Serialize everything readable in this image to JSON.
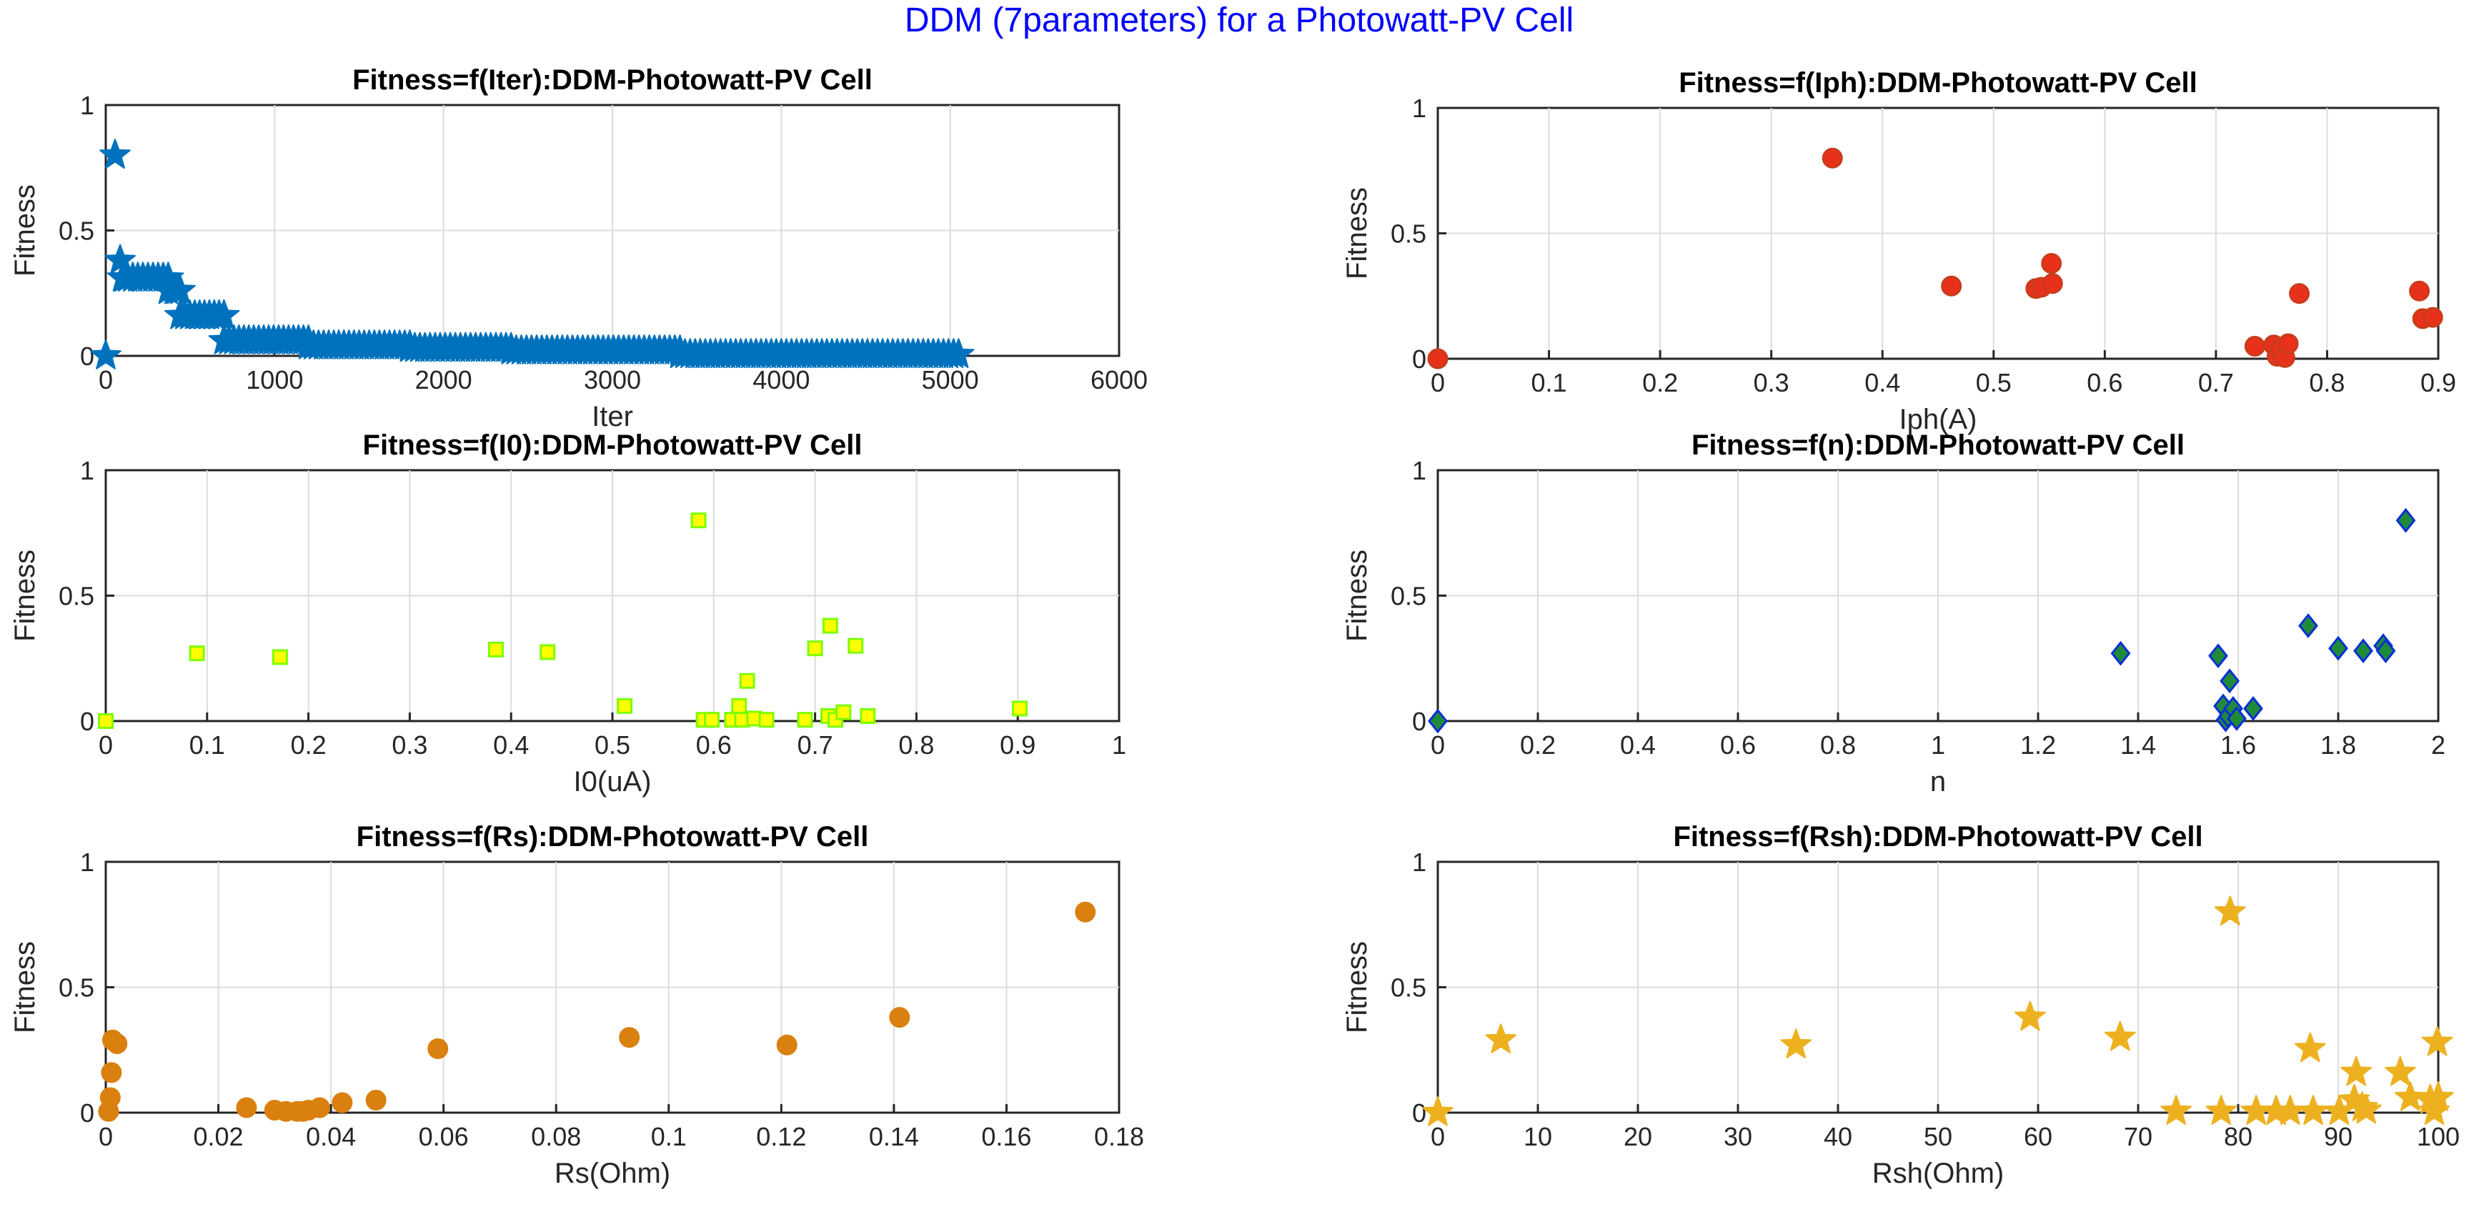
{
  "suptitle": "DDM (7parameters) for a Photowatt-PV Cell",
  "colors": {
    "title": "#0000ff",
    "iter_marker": "#0072bd",
    "iph_face": "#e8311b",
    "iph_edge": "#c83c1b",
    "i0_face": "#ffff00",
    "i0_edge": "#7cff00",
    "n_face": "#1f8a3a",
    "n_edge": "#0a2fd8",
    "rs_marker": "#d9800e",
    "rsh_marker": "#edb120"
  },
  "chart_data": [
    {
      "id": "iter",
      "type": "scatter",
      "marker": "star",
      "marker_name": "iter-point",
      "title": "Fitness=f(Iter):DDM-Photowatt-PV Cell",
      "xlabel": "Iter",
      "ylabel": "Fitness",
      "xlim": [
        0,
        6000
      ],
      "ylim": [
        0,
        1
      ],
      "xticks": [
        0,
        1000,
        2000,
        3000,
        4000,
        5000,
        6000
      ],
      "xtick_labels": [
        "0",
        "1000",
        "2000",
        "3000",
        "4000",
        "5000",
        "6000"
      ],
      "yticks": [
        0,
        0.5,
        1
      ],
      "ytick_labels": [
        "0",
        "0.5",
        "1"
      ],
      "grid": true,
      "points": [
        [
          0,
          0
        ],
        [
          55,
          0.8
        ],
        [
          85,
          0.38
        ],
        [
          110,
          0.31
        ],
        [
          420,
          0.26
        ]
      ],
      "segments": [
        {
          "x_start": 100,
          "x_end": 370,
          "y": 0.31
        },
        {
          "x_start": 370,
          "x_end": 440,
          "y": 0.26
        },
        {
          "x_start": 440,
          "x_end": 700,
          "y": 0.16
        },
        {
          "x_start": 700,
          "x_end": 1200,
          "y": 0.06
        },
        {
          "x_start": 1200,
          "x_end": 1800,
          "y": 0.04
        },
        {
          "x_start": 1800,
          "x_end": 2400,
          "y": 0.03
        },
        {
          "x_start": 2400,
          "x_end": 3400,
          "y": 0.02
        },
        {
          "x_start": 3400,
          "x_end": 5050,
          "y": 0.005
        }
      ]
    },
    {
      "id": "iph",
      "type": "scatter",
      "marker": "circle",
      "marker_name": "iph-point",
      "title": "Fitness=f(Iph):DDM-Photowatt-PV Cell",
      "xlabel": "Iph(A)",
      "ylabel": "Fitness",
      "xlim": [
        0,
        0.9
      ],
      "ylim": [
        0,
        1
      ],
      "xticks": [
        0,
        0.1,
        0.2,
        0.3,
        0.4,
        0.5,
        0.6,
        0.7,
        0.8,
        0.9
      ],
      "xtick_labels": [
        "0",
        "0.1",
        "0.2",
        "0.3",
        "0.4",
        "0.5",
        "0.6",
        "0.7",
        "0.8",
        "0.9"
      ],
      "yticks": [
        0,
        0.5,
        1
      ],
      "ytick_labels": [
        "0",
        "0.5",
        "1"
      ],
      "grid": true,
      "points": [
        [
          0,
          0
        ],
        [
          0.355,
          0.8
        ],
        [
          0.462,
          0.29
        ],
        [
          0.538,
          0.28
        ],
        [
          0.543,
          0.285
        ],
        [
          0.552,
          0.38
        ],
        [
          0.553,
          0.3
        ],
        [
          0.735,
          0.05
        ],
        [
          0.752,
          0.055
        ],
        [
          0.755,
          0.01
        ],
        [
          0.758,
          0.04
        ],
        [
          0.762,
          0.005
        ],
        [
          0.765,
          0.06
        ],
        [
          0.775,
          0.26
        ],
        [
          0.883,
          0.27
        ],
        [
          0.886,
          0.16
        ],
        [
          0.895,
          0.165
        ]
      ]
    },
    {
      "id": "i0",
      "type": "scatter",
      "marker": "square",
      "marker_name": "i0-point",
      "title": "Fitness=f(I0):DDM-Photowatt-PV Cell",
      "xlabel": "I0(uA)",
      "ylabel": "Fitness",
      "xlim": [
        0,
        1
      ],
      "ylim": [
        0,
        1
      ],
      "xticks": [
        0,
        0.1,
        0.2,
        0.3,
        0.4,
        0.5,
        0.6,
        0.7,
        0.8,
        0.9,
        1
      ],
      "xtick_labels": [
        "0",
        "0.1",
        "0.2",
        "0.3",
        "0.4",
        "0.5",
        "0.6",
        "0.7",
        "0.8",
        "0.9",
        "1"
      ],
      "yticks": [
        0,
        0.5,
        1
      ],
      "ytick_labels": [
        "0",
        "0.5",
        "1"
      ],
      "grid": true,
      "points": [
        [
          0,
          0
        ],
        [
          0.09,
          0.27
        ],
        [
          0.172,
          0.255
        ],
        [
          0.385,
          0.285
        ],
        [
          0.436,
          0.275
        ],
        [
          0.512,
          0.06
        ],
        [
          0.585,
          0.8
        ],
        [
          0.59,
          0.005
        ],
        [
          0.598,
          0.005
        ],
        [
          0.618,
          0.005
        ],
        [
          0.625,
          0.06
        ],
        [
          0.628,
          0.005
        ],
        [
          0.633,
          0.16
        ],
        [
          0.64,
          0.01
        ],
        [
          0.652,
          0.005
        ],
        [
          0.69,
          0.005
        ],
        [
          0.7,
          0.29
        ],
        [
          0.713,
          0.02
        ],
        [
          0.715,
          0.38
        ],
        [
          0.72,
          0.005
        ],
        [
          0.728,
          0.035
        ],
        [
          0.74,
          0.3
        ],
        [
          0.752,
          0.02
        ],
        [
          0.902,
          0.05
        ]
      ]
    },
    {
      "id": "n",
      "type": "scatter",
      "marker": "diamond",
      "marker_name": "n-point",
      "title": "Fitness=f(n):DDM-Photowatt-PV Cell",
      "xlabel": "n",
      "ylabel": "Fitness",
      "xlim": [
        0,
        2
      ],
      "ylim": [
        0,
        1
      ],
      "xticks": [
        0,
        0.2,
        0.4,
        0.6,
        0.8,
        1,
        1.2,
        1.4,
        1.6,
        1.8,
        2
      ],
      "xtick_labels": [
        "0",
        "0.2",
        "0.4",
        "0.6",
        "0.8",
        "1",
        "1.2",
        "1.4",
        "1.6",
        "1.8",
        "2"
      ],
      "yticks": [
        0,
        0.5,
        1
      ],
      "ytick_labels": [
        "0",
        "0.5",
        "1"
      ],
      "grid": true,
      "points": [
        [
          0,
          0
        ],
        [
          1.365,
          0.27
        ],
        [
          1.56,
          0.26
        ],
        [
          1.57,
          0.06
        ],
        [
          1.575,
          0.005
        ],
        [
          1.58,
          0.02
        ],
        [
          1.583,
          0.16
        ],
        [
          1.59,
          0.05
        ],
        [
          1.597,
          0.01
        ],
        [
          1.63,
          0.05
        ],
        [
          1.74,
          0.38
        ],
        [
          1.8,
          0.29
        ],
        [
          1.85,
          0.28
        ],
        [
          1.89,
          0.3
        ],
        [
          1.895,
          0.28
        ],
        [
          1.935,
          0.8
        ]
      ]
    },
    {
      "id": "rs",
      "type": "scatter",
      "marker": "circle",
      "marker_name": "rs-point",
      "title": "Fitness=f(Rs):DDM-Photowatt-PV Cell",
      "xlabel": "Rs(Ohm)",
      "ylabel": "Fitness",
      "xlim": [
        0,
        0.18
      ],
      "ylim": [
        0,
        1
      ],
      "xticks": [
        0,
        0.02,
        0.04,
        0.06,
        0.08,
        0.1,
        0.12,
        0.14,
        0.16,
        0.18
      ],
      "xtick_labels": [
        "0",
        "0.02",
        "0.04",
        "0.06",
        "0.08",
        "0.1",
        "0.12",
        "0.14",
        "0.16",
        "0.18"
      ],
      "yticks": [
        0,
        0.5,
        1
      ],
      "ytick_labels": [
        "0",
        "0.5",
        "1"
      ],
      "grid": true,
      "points": [
        [
          0.0005,
          0.005
        ],
        [
          0.0008,
          0.06
        ],
        [
          0.001,
          0.16
        ],
        [
          0.0012,
          0.29
        ],
        [
          0.002,
          0.275
        ],
        [
          0.025,
          0.02
        ],
        [
          0.03,
          0.01
        ],
        [
          0.032,
          0.005
        ],
        [
          0.034,
          0.005
        ],
        [
          0.035,
          0.005
        ],
        [
          0.036,
          0.01
        ],
        [
          0.038,
          0.02
        ],
        [
          0.042,
          0.04
        ],
        [
          0.048,
          0.05
        ],
        [
          0.059,
          0.255
        ],
        [
          0.093,
          0.3
        ],
        [
          0.121,
          0.27
        ],
        [
          0.141,
          0.38
        ],
        [
          0.174,
          0.8
        ]
      ]
    },
    {
      "id": "rsh",
      "type": "scatter",
      "marker": "star",
      "marker_name": "rsh-point",
      "title": "Fitness=f(Rsh):DDM-Photowatt-PV Cell",
      "xlabel": "Rsh(Ohm)",
      "ylabel": "Fitness",
      "xlim": [
        0,
        100
      ],
      "ylim": [
        0,
        1
      ],
      "xticks": [
        0,
        10,
        20,
        30,
        40,
        50,
        60,
        70,
        80,
        90,
        100
      ],
      "xtick_labels": [
        "0",
        "10",
        "20",
        "30",
        "40",
        "50",
        "60",
        "70",
        "80",
        "90",
        "100"
      ],
      "yticks": [
        0,
        0.5,
        1
      ],
      "ytick_labels": [
        "0",
        "0.5",
        "1"
      ],
      "grid": true,
      "points": [
        [
          0,
          0
        ],
        [
          6.3,
          0.29
        ],
        [
          35.8,
          0.27
        ],
        [
          59.2,
          0.38
        ],
        [
          68.2,
          0.3
        ],
        [
          73.8,
          0.005
        ],
        [
          78.3,
          0.005
        ],
        [
          79.2,
          0.8
        ],
        [
          81.8,
          0.005
        ],
        [
          83.8,
          0.005
        ],
        [
          85.2,
          0.005
        ],
        [
          87.2,
          0.255
        ],
        [
          87.5,
          0.005
        ],
        [
          90.1,
          0.005
        ],
        [
          91.6,
          0.05
        ],
        [
          91.8,
          0.16
        ],
        [
          92.4,
          0.02
        ],
        [
          92.8,
          0.01
        ],
        [
          96.2,
          0.16
        ],
        [
          97.2,
          0.06
        ],
        [
          99.2,
          0.05
        ],
        [
          99.6,
          0.005
        ],
        [
          99.9,
          0.28
        ],
        [
          100,
          0.06
        ]
      ]
    }
  ]
}
